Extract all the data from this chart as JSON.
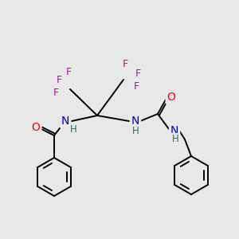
{
  "bg_color": "#e8e8e8",
  "bond_color": "#000000",
  "atom_colors": {
    "O": "#ff0000",
    "N": "#0000cc",
    "H": "#008080",
    "F": "#cc00cc",
    "C": "#000000"
  }
}
